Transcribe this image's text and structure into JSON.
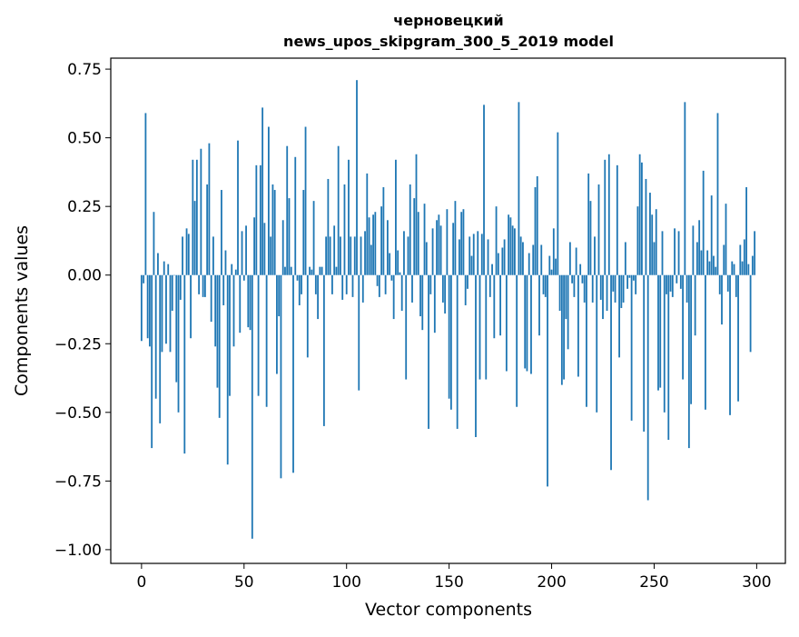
{
  "chart_data": {
    "type": "bar",
    "title_line1": "черновецкий",
    "title_line2": "news_upos_skipgram_300_5_2019 model",
    "xlabel": "Vector components",
    "ylabel": "Components values",
    "xlim": [
      -15,
      314
    ],
    "ylim": [
      -1.05,
      0.79
    ],
    "xticks": [
      0,
      50,
      100,
      150,
      200,
      250,
      300
    ],
    "xtick_labels": [
      "0",
      "50",
      "100",
      "150",
      "200",
      "250",
      "300"
    ],
    "yticks": [
      0.75,
      0.5,
      0.25,
      0.0,
      -0.25,
      -0.5,
      -0.75,
      -1.0
    ],
    "ytick_labels": [
      "0.75",
      "0.50",
      "0.25",
      "0.00",
      "−0.25",
      "−0.50",
      "−0.75",
      "−1.00"
    ],
    "bar_color": "#1f77b4",
    "values": [
      -0.24,
      -0.03,
      0.59,
      -0.23,
      -0.26,
      -0.63,
      0.23,
      -0.45,
      0.08,
      -0.54,
      -0.28,
      0.05,
      -0.25,
      0.04,
      -0.28,
      -0.13,
      0.0,
      -0.39,
      -0.5,
      -0.09,
      0.14,
      -0.65,
      0.17,
      0.15,
      -0.23,
      0.42,
      0.27,
      0.42,
      -0.07,
      0.46,
      -0.08,
      -0.08,
      0.33,
      0.48,
      -0.17,
      0.14,
      -0.26,
      -0.41,
      -0.52,
      0.31,
      -0.11,
      0.09,
      -0.69,
      -0.44,
      0.04,
      -0.26,
      0.02,
      0.49,
      -0.21,
      0.16,
      -0.02,
      0.18,
      -0.19,
      -0.2,
      -0.96,
      0.21,
      0.4,
      -0.44,
      0.4,
      0.61,
      0.19,
      -0.48,
      0.54,
      0.14,
      0.33,
      0.31,
      -0.36,
      -0.15,
      -0.74,
      0.2,
      0.03,
      0.47,
      0.28,
      0.03,
      -0.72,
      0.43,
      -0.02,
      -0.11,
      -0.07,
      0.31,
      0.54,
      -0.3,
      0.03,
      0.02,
      0.27,
      -0.07,
      -0.16,
      0.03,
      0.03,
      -0.55,
      0.14,
      0.35,
      0.14,
      -0.07,
      0.18,
      0.03,
      0.47,
      0.14,
      -0.09,
      0.33,
      -0.07,
      0.42,
      0.14,
      -0.08,
      0.14,
      0.71,
      -0.42,
      0.14,
      -0.1,
      0.16,
      0.37,
      0.21,
      0.11,
      0.22,
      0.23,
      -0.04,
      -0.08,
      0.25,
      0.32,
      -0.07,
      0.2,
      0.08,
      -0.02,
      -0.16,
      0.42,
      0.09,
      0.01,
      -0.13,
      0.16,
      -0.38,
      0.14,
      0.33,
      -0.1,
      0.28,
      0.44,
      0.23,
      -0.15,
      -0.2,
      0.26,
      0.12,
      -0.56,
      -0.07,
      0.17,
      -0.21,
      0.2,
      0.22,
      0.18,
      -0.1,
      -0.14,
      0.24,
      -0.45,
      -0.49,
      0.19,
      0.27,
      -0.56,
      0.13,
      0.23,
      0.24,
      -0.11,
      -0.05,
      0.14,
      0.07,
      0.15,
      -0.59,
      0.16,
      -0.38,
      0.15,
      0.62,
      -0.38,
      0.13,
      -0.08,
      0.04,
      -0.23,
      0.25,
      0.08,
      -0.22,
      0.1,
      0.13,
      -0.35,
      0.22,
      0.21,
      0.18,
      0.17,
      -0.48,
      0.63,
      0.14,
      0.12,
      -0.34,
      -0.35,
      0.08,
      -0.36,
      0.11,
      0.32,
      0.36,
      -0.22,
      0.11,
      -0.07,
      -0.08,
      -0.77,
      0.07,
      0.02,
      0.17,
      0.06,
      0.52,
      -0.13,
      -0.4,
      -0.38,
      -0.16,
      -0.27,
      0.12,
      -0.03,
      -0.08,
      0.1,
      -0.37,
      0.04,
      -0.03,
      -0.1,
      -0.48,
      0.37,
      0.27,
      -0.1,
      0.14,
      -0.5,
      0.33,
      -0.09,
      -0.16,
      0.42,
      -0.13,
      0.44,
      -0.71,
      -0.06,
      -0.1,
      0.4,
      -0.3,
      -0.12,
      -0.1,
      0.12,
      -0.05,
      -0.01,
      -0.53,
      -0.02,
      -0.07,
      0.25,
      0.44,
      0.41,
      -0.57,
      0.35,
      -0.82,
      0.3,
      0.22,
      0.12,
      0.24,
      -0.42,
      -0.41,
      0.16,
      -0.5,
      -0.07,
      -0.6,
      -0.06,
      -0.08,
      0.17,
      -0.03,
      0.16,
      -0.05,
      -0.38,
      0.63,
      -0.1,
      -0.63,
      -0.47,
      0.18,
      -0.22,
      0.12,
      0.2,
      0.09,
      0.38,
      -0.49,
      0.09,
      0.05,
      0.29,
      0.07,
      0.03,
      0.59,
      -0.07,
      -0.18,
      0.11,
      0.26,
      -0.06,
      -0.51,
      0.05,
      0.04,
      -0.08,
      -0.46,
      0.11,
      0.05,
      0.13,
      0.32,
      0.04,
      -0.28,
      0.07,
      0.16
    ]
  }
}
